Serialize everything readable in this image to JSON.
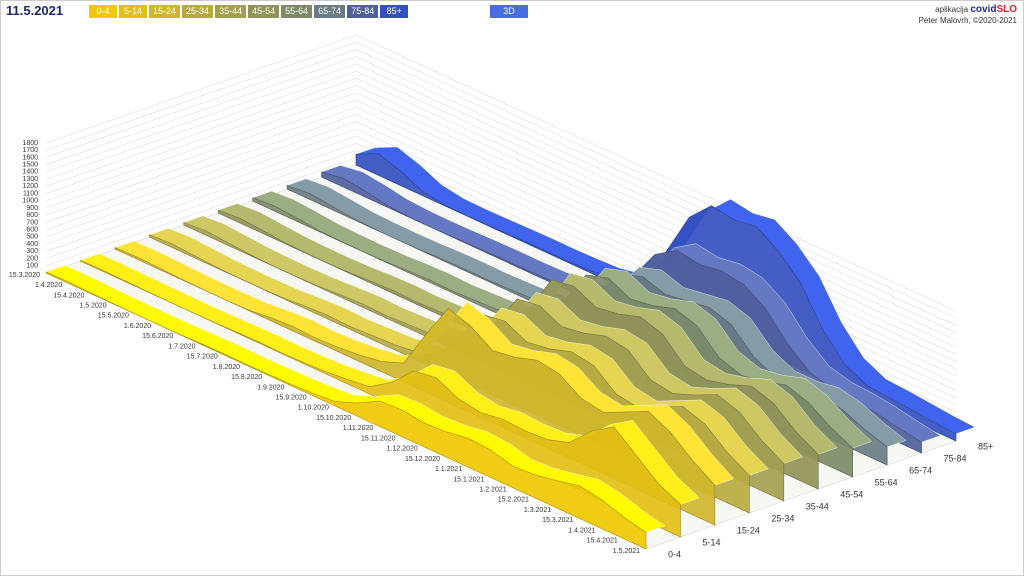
{
  "header": {
    "app_prefix": "aplikacija",
    "app_name_a": "covid",
    "app_name_b": "SLO",
    "author": "Peter Malovrh, ©2020-2021",
    "view_button": "3D"
  },
  "chart_data": {
    "type": "ribbon3d",
    "title": "11.5.2021",
    "x": [
      "15.3.2020",
      "1.4.2020",
      "15.4.2020",
      "1.5.2020",
      "15.5.2020",
      "1.6.2020",
      "15.6.2020",
      "1.7.2020",
      "15.7.2020",
      "1.8.2020",
      "15.8.2020",
      "1.9.2020",
      "15.9.2020",
      "1.10.2020",
      "15.10.2020",
      "1.11.2020",
      "15.11.2020",
      "1.12.2020",
      "15.12.2020",
      "1.1.2021",
      "15.1.2021",
      "1.2.2021",
      "15.2.2021",
      "1.3.2021",
      "15.3.2021",
      "1.4.2021",
      "15.4.2021",
      "1.5.2021"
    ],
    "ylim": [
      0,
      1800
    ],
    "yticks": [
      100,
      200,
      300,
      400,
      500,
      600,
      700,
      800,
      900,
      1000,
      1100,
      1200,
      1300,
      1400,
      1500,
      1600,
      1700,
      1800
    ],
    "grid": true,
    "series": [
      {
        "name": "0-4",
        "color": "#f0c800",
        "values": [
          15,
          20,
          10,
          5,
          2,
          1,
          3,
          10,
          15,
          10,
          15,
          20,
          35,
          60,
          180,
          350,
          370,
          330,
          350,
          400,
          380,
          300,
          320,
          380,
          450,
          400,
          300,
          230
        ]
      },
      {
        "name": "5-14",
        "color": "#e2bf14",
        "values": [
          10,
          15,
          10,
          5,
          2,
          1,
          3,
          10,
          15,
          10,
          15,
          30,
          60,
          100,
          300,
          600,
          650,
          500,
          450,
          500,
          480,
          500,
          600,
          900,
          1100,
          850,
          600,
          450
        ]
      },
      {
        "name": "15-24",
        "color": "#cfb62a",
        "values": [
          20,
          30,
          20,
          8,
          3,
          2,
          8,
          40,
          60,
          45,
          60,
          90,
          140,
          260,
          800,
          1300,
          1200,
          1000,
          1050,
          1150,
          1100,
          900,
          850,
          1000,
          1150,
          1000,
          750,
          550
        ]
      },
      {
        "name": "25-34",
        "color": "#b8aa40",
        "values": [
          30,
          50,
          30,
          10,
          4,
          3,
          10,
          35,
          50,
          40,
          55,
          70,
          110,
          200,
          600,
          1050,
          1100,
          950,
          1000,
          1100,
          1050,
          800,
          750,
          900,
          1050,
          950,
          700,
          520
        ]
      },
      {
        "name": "35-44",
        "color": "#a4a050",
        "values": [
          35,
          60,
          35,
          12,
          4,
          3,
          10,
          30,
          45,
          35,
          50,
          65,
          110,
          200,
          600,
          1100,
          1150,
          1000,
          1050,
          1150,
          1100,
          830,
          780,
          900,
          1050,
          950,
          700,
          520
        ]
      },
      {
        "name": "45-54",
        "color": "#909458",
        "values": [
          40,
          65,
          40,
          15,
          5,
          3,
          10,
          30,
          40,
          30,
          45,
          65,
          110,
          210,
          650,
          1200,
          1250,
          1100,
          1150,
          1250,
          1150,
          850,
          800,
          880,
          1000,
          900,
          650,
          480
        ]
      },
      {
        "name": "55-64",
        "color": "#7c8a68",
        "values": [
          45,
          70,
          45,
          15,
          5,
          3,
          8,
          25,
          35,
          25,
          40,
          55,
          100,
          200,
          600,
          1100,
          1200,
          1050,
          1100,
          1200,
          1100,
          800,
          700,
          750,
          850,
          750,
          550,
          400
        ]
      },
      {
        "name": "65-74",
        "color": "#6a7c84",
        "values": [
          50,
          80,
          50,
          15,
          4,
          2,
          6,
          20,
          25,
          20,
          30,
          45,
          90,
          180,
          550,
          950,
          1050,
          950,
          1000,
          1050,
          950,
          650,
          500,
          500,
          550,
          480,
          350,
          250
        ]
      },
      {
        "name": "75-84",
        "color": "#50609c",
        "values": [
          70,
          120,
          80,
          25,
          6,
          2,
          6,
          15,
          20,
          18,
          25,
          40,
          90,
          200,
          600,
          1050,
          1250,
          1200,
          1250,
          1200,
          1000,
          650,
          400,
          320,
          300,
          260,
          200,
          150
        ]
      },
      {
        "name": "85+",
        "color": "#3450c0",
        "values": [
          150,
          300,
          200,
          60,
          10,
          3,
          8,
          15,
          20,
          18,
          25,
          40,
          100,
          250,
          800,
          1400,
          1700,
          1650,
          1700,
          1500,
          1200,
          700,
          350,
          200,
          180,
          150,
          120,
          100
        ]
      }
    ]
  }
}
